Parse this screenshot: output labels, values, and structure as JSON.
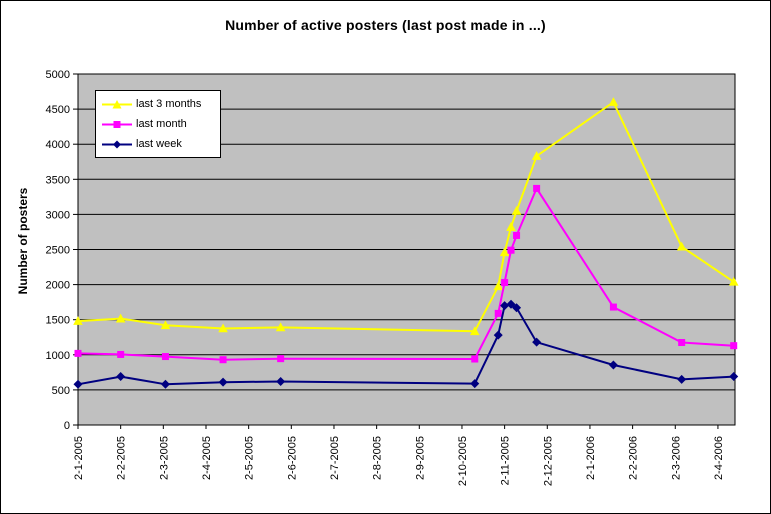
{
  "frame": {
    "background": "#FFFFFF",
    "border_color": "#000000"
  },
  "chart_data": {
    "type": "line",
    "title": "Number of active posters (last post made in ...)",
    "xlabel": "",
    "ylabel": "Number of posters",
    "ylim": [
      0,
      5000
    ],
    "y_tick_step": 500,
    "y_tick_labels": [
      "0",
      "500",
      "1000",
      "1500",
      "2000",
      "2500",
      "3000",
      "3500",
      "4000",
      "4500",
      "5000"
    ],
    "x_tick_labels": [
      "2-1-2005",
      "2-2-2005",
      "2-3-2005",
      "2-4-2005",
      "2-5-2005",
      "2-6-2005",
      "2-7-2005",
      "2-8-2005",
      "2-9-2005",
      "2-10-2005",
      "2-11-2005",
      "2-12-2005",
      "2-1-2006",
      "2-2-2006",
      "2-3-2006",
      "2-4-2006"
    ],
    "xlim_month_offsets": [
      0,
      15.4
    ],
    "x_month_offsets": [
      0,
      1,
      2.05,
      3.4,
      4.75,
      9.3,
      9.85,
      10.0,
      10.15,
      10.28,
      10.75,
      12.55,
      14.15,
      15.37
    ],
    "grid": true,
    "gridline_color": "#000000",
    "plot_background": "#C0C0C0",
    "axis_color": "#000000",
    "text_color": "#000000",
    "legend_position": "inside-top-left",
    "series": [
      {
        "name": "last 3 months",
        "color": "#FFFF00",
        "marker": "triangle",
        "values": [
          1480,
          1515,
          1420,
          1375,
          1390,
          1335,
          1975,
          2460,
          2820,
          3050,
          3830,
          4600,
          2540,
          2040
        ]
      },
      {
        "name": "last month",
        "color": "#FF00FF",
        "marker": "square",
        "values": [
          1020,
          1005,
          975,
          930,
          945,
          940,
          1590,
          2030,
          2490,
          2700,
          3370,
          1680,
          1175,
          1130
        ]
      },
      {
        "name": "last week",
        "color": "#000080",
        "marker": "diamond",
        "values": [
          580,
          690,
          580,
          610,
          620,
          590,
          1280,
          1700,
          1720,
          1670,
          1180,
          855,
          650,
          690
        ]
      }
    ]
  }
}
